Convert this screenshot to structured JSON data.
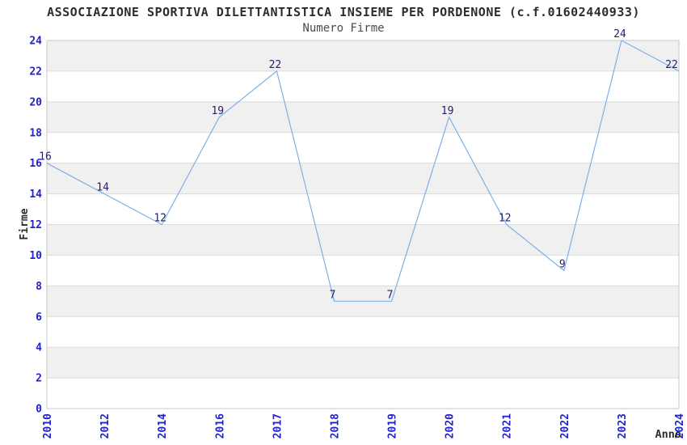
{
  "header": {
    "title": "ASSOCIAZIONE SPORTIVA DILETTANTISTICA INSIEME PER PORDENONE (c.f.01602440933)",
    "subtitle": "Numero Firme"
  },
  "chart_data": {
    "type": "line",
    "title": "Numero Firme",
    "categories": [
      "2010",
      "2012",
      "2014",
      "2016",
      "2017",
      "2018",
      "2019",
      "2020",
      "2021",
      "2022",
      "2023",
      "2024"
    ],
    "values": [
      16,
      14,
      12,
      19,
      22,
      7,
      7,
      19,
      12,
      9,
      24,
      22
    ],
    "xlabel": "Anno",
    "ylabel": "Firme",
    "ylim": [
      0,
      24
    ],
    "ytick_step": 2,
    "yticks": [
      0,
      2,
      4,
      6,
      8,
      10,
      12,
      14,
      16,
      18,
      20,
      22,
      24
    ],
    "legend": "none",
    "grid": "alternating-horizontal-bands",
    "point_labels_shown": true,
    "colors": {
      "line": "#7db0e6",
      "tick_text": "#2222cc",
      "point_label_text": "#22226e",
      "band_fill": "#f0f0f0",
      "band_line": "#dcdcdc",
      "plot_border": "#c8c8c8",
      "title_text": "#2d2d2d",
      "subtitle_text": "#4c4c4c",
      "axis_title_text": "#2d2d2d"
    }
  }
}
